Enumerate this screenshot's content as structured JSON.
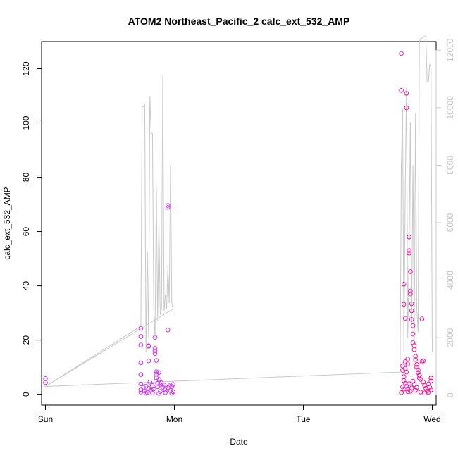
{
  "chart_data": {
    "type": "scatter",
    "title": "ATOM2 Northeast_Pacific_2 calc_ext_532_AMP",
    "xlabel": "Date",
    "ylabel": "calc_ext_532_AMP",
    "x_axis": {
      "ticks": [
        {
          "value": 0,
          "label": "Sun"
        },
        {
          "value": 1,
          "label": "Mon"
        },
        {
          "value": 2,
          "label": "Tue"
        },
        {
          "value": 3,
          "label": "Wed"
        }
      ],
      "range": [
        -0.03,
        3.03
      ]
    },
    "y_left": {
      "range": [
        -4,
        130
      ],
      "ticks": [
        0,
        20,
        40,
        60,
        80,
        100,
        120
      ],
      "labels": [
        "0",
        "20",
        "40",
        "60",
        "80",
        "100",
        "120"
      ]
    },
    "y_right": {
      "range": [
        -350,
        12300
      ],
      "ticks": [
        0,
        2000,
        4000,
        6000,
        8000,
        10000,
        12000
      ],
      "labels": [
        "0",
        "2000",
        "4000",
        "6000",
        "8000",
        "10000",
        "12000"
      ],
      "color": "#c8c8c8"
    },
    "grid": false,
    "legend": "none",
    "series": [
      {
        "role": "points",
        "marker": "open-circle",
        "color_start": "#cc33ff",
        "color_end": "#ff1493",
        "points": [
          [
            0.0,
            5.8
          ],
          [
            0.0,
            4.3
          ],
          [
            0.74,
            24.3
          ],
          [
            0.74,
            21.3
          ],
          [
            0.74,
            18.2
          ],
          [
            0.74,
            11.6
          ],
          [
            0.74,
            7.3
          ],
          [
            0.74,
            3.8
          ],
          [
            0.74,
            1.8
          ],
          [
            0.74,
            0.8
          ],
          [
            0.76,
            2.5
          ],
          [
            0.77,
            1.2
          ],
          [
            0.78,
            3.0
          ],
          [
            0.79,
            0.6
          ],
          [
            0.8,
            17.9
          ],
          [
            0.8,
            17.7
          ],
          [
            0.8,
            12.3
          ],
          [
            0.8,
            2.2
          ],
          [
            0.81,
            4.5
          ],
          [
            0.82,
            1.5
          ],
          [
            0.83,
            3.2
          ],
          [
            0.84,
            2.0
          ],
          [
            0.85,
            21.0
          ],
          [
            0.85,
            17.0
          ],
          [
            0.85,
            16.0
          ],
          [
            0.85,
            15.0
          ],
          [
            0.86,
            12.5
          ],
          [
            0.86,
            8.3
          ],
          [
            0.86,
            7.5
          ],
          [
            0.86,
            6.0
          ],
          [
            0.87,
            4.0
          ],
          [
            0.87,
            2.8
          ],
          [
            0.88,
            8.0
          ],
          [
            0.88,
            5.5
          ],
          [
            0.89,
            3.5
          ],
          [
            0.89,
            1.0
          ],
          [
            0.9,
            4.2
          ],
          [
            0.91,
            2.6
          ],
          [
            0.92,
            3.4
          ],
          [
            0.93,
            1.6
          ],
          [
            0.95,
            69.6
          ],
          [
            0.95,
            68.9
          ],
          [
            0.95,
            23.7
          ],
          [
            0.95,
            2.4
          ],
          [
            0.96,
            3.1
          ],
          [
            0.97,
            1.4
          ],
          [
            0.98,
            2.9
          ],
          [
            0.99,
            3.6
          ],
          [
            0.99,
            0.9
          ],
          [
            0.78,
            0.4
          ],
          [
            0.83,
            0.5
          ],
          [
            0.88,
            0.3
          ],
          [
            0.93,
            0.6
          ],
          [
            0.98,
            0.4
          ],
          [
            2.76,
            125.6
          ],
          [
            2.76,
            112.0
          ],
          [
            2.8,
            110.9
          ],
          [
            2.8,
            105.6
          ],
          [
            2.78,
            40.6
          ],
          [
            2.78,
            33.2
          ],
          [
            2.82,
            58.0
          ],
          [
            2.82,
            53.0
          ],
          [
            2.82,
            52.0
          ],
          [
            2.83,
            45.2
          ],
          [
            2.83,
            38.1
          ],
          [
            2.83,
            37.0
          ],
          [
            2.84,
            33.4
          ],
          [
            2.84,
            30.8
          ],
          [
            2.84,
            27.6
          ],
          [
            2.85,
            25.3
          ],
          [
            2.85,
            22.2
          ],
          [
            2.85,
            19.0
          ],
          [
            2.86,
            18.0
          ],
          [
            2.86,
            16.5
          ],
          [
            2.87,
            14.0
          ],
          [
            2.87,
            12.8
          ],
          [
            2.88,
            11.0
          ],
          [
            2.88,
            10.0
          ],
          [
            2.89,
            9.0
          ],
          [
            2.89,
            8.0
          ],
          [
            2.9,
            7.0
          ],
          [
            2.9,
            6.0
          ],
          [
            2.79,
            28.0
          ],
          [
            2.79,
            12.0
          ],
          [
            2.79,
            9.5
          ],
          [
            2.8,
            8.2
          ],
          [
            2.81,
            13.0
          ],
          [
            2.81,
            11.2
          ],
          [
            2.77,
            10.5
          ],
          [
            2.77,
            8.8
          ],
          [
            2.78,
            6.5
          ],
          [
            2.78,
            5.0
          ],
          [
            2.79,
            4.0
          ],
          [
            2.8,
            3.0
          ],
          [
            2.81,
            2.0
          ],
          [
            2.81,
            1.0
          ],
          [
            2.92,
            27.8
          ],
          [
            2.93,
            12.3
          ],
          [
            2.92,
            12.0
          ],
          [
            2.91,
            5.5
          ],
          [
            2.93,
            4.5
          ],
          [
            2.94,
            3.3
          ],
          [
            2.95,
            2.2
          ],
          [
            2.96,
            1.2
          ],
          [
            2.97,
            3.8
          ],
          [
            2.98,
            2.6
          ],
          [
            2.99,
            6.0
          ],
          [
            2.99,
            4.9
          ],
          [
            2.99,
            1.6
          ],
          [
            2.88,
            2.5
          ],
          [
            2.87,
            1.5
          ],
          [
            2.86,
            3.6
          ],
          [
            2.85,
            4.8
          ],
          [
            2.84,
            2.3
          ],
          [
            2.83,
            1.1
          ],
          [
            2.82,
            3.9
          ],
          [
            2.91,
            0.8
          ],
          [
            2.94,
            0.5
          ],
          [
            2.97,
            0.7
          ],
          [
            2.76,
            0.6
          ],
          [
            2.77,
            2.7
          ],
          [
            2.78,
            1.9
          ]
        ]
      },
      {
        "role": "line",
        "axis": "right",
        "color": "#c8c8c8",
        "points": [
          [
            0.0,
            300
          ],
          [
            0.74,
            2400
          ],
          [
            0.75,
            10000
          ],
          [
            0.77,
            10100
          ],
          [
            0.78,
            1500
          ],
          [
            0.79,
            5000
          ],
          [
            0.8,
            2000
          ],
          [
            0.81,
            10400
          ],
          [
            0.82,
            9100
          ],
          [
            0.83,
            9100
          ],
          [
            0.84,
            3000
          ],
          [
            0.85,
            2000
          ],
          [
            0.86,
            7200
          ],
          [
            0.87,
            2600
          ],
          [
            0.88,
            6000
          ],
          [
            0.89,
            2800
          ],
          [
            0.9,
            3000
          ],
          [
            0.91,
            11100
          ],
          [
            0.92,
            2900
          ],
          [
            0.93,
            3500
          ],
          [
            0.94,
            3000
          ],
          [
            0.95,
            4500
          ],
          [
            0.96,
            3200
          ],
          [
            0.97,
            8000
          ],
          [
            0.98,
            3200
          ],
          [
            0.99,
            3000
          ],
          [
            0.0,
            300
          ],
          [
            2.75,
            800
          ],
          [
            2.76,
            8000
          ],
          [
            2.77,
            10000
          ],
          [
            2.78,
            1500
          ],
          [
            2.79,
            7000
          ],
          [
            2.8,
            10700
          ],
          [
            2.81,
            2000
          ],
          [
            2.82,
            5000
          ],
          [
            2.83,
            9500
          ],
          [
            2.84,
            2500
          ],
          [
            2.85,
            8000
          ],
          [
            2.86,
            1800
          ],
          [
            2.87,
            9800
          ],
          [
            2.88,
            3000
          ],
          [
            2.89,
            2200
          ],
          [
            2.9,
            12300
          ],
          [
            2.91,
            12400
          ],
          [
            2.95,
            12500
          ],
          [
            2.96,
            10900
          ],
          [
            2.97,
            10900
          ],
          [
            2.98,
            11500
          ],
          [
            2.99,
            11400
          ],
          [
            3.0,
            1500
          ]
        ]
      }
    ]
  }
}
